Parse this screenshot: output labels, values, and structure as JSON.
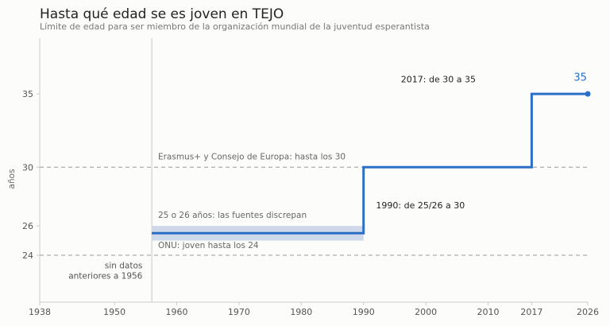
{
  "chart_data": {
    "type": "line",
    "title": "Hasta qué edad se es joven en TEJO",
    "subtitle": "Límite de edad para ser miembro de la organización mundial de la juventud esperantista",
    "ylabel": "años",
    "xlim": [
      1938,
      2026
    ],
    "ylim": [
      20.8,
      38.8
    ],
    "x_ticks": [
      1938,
      1950,
      1960,
      1970,
      1980,
      1990,
      2000,
      2010,
      2017,
      2026
    ],
    "y_ticks": [
      24,
      26,
      30,
      35
    ],
    "series": [
      {
        "step": true,
        "points": [
          {
            "x": 1956,
            "y": 25.5
          },
          {
            "x": 1990,
            "y": 25.5
          },
          {
            "x": 1990,
            "y": 30
          },
          {
            "x": 2017,
            "y": 30
          },
          {
            "x": 2017,
            "y": 35
          },
          {
            "x": 2026,
            "y": 35
          }
        ]
      }
    ],
    "band": {
      "x0": 1956,
      "x1": 1990,
      "y0": 25,
      "y1": 26
    },
    "no_data_until": 1956,
    "reference_lines": [
      {
        "y": 30,
        "label": "Erasmus+ y Consejo de Europa: hasta los 30"
      },
      {
        "y": 24,
        "label": "ONU: joven hasta los 24"
      }
    ],
    "annotations": {
      "band_label": "25 o 26 años: las fuentes discrepan",
      "change_1990": "1990: de 25/26 a 30",
      "change_2017": "2017: de 30 a 35",
      "no_data_line1": "sin datos",
      "no_data_line2": "anteriores a 1956",
      "end_value": "35"
    },
    "colors": {
      "line": "#2b6fc7",
      "band": "#cfd9ea",
      "reference": "#999999",
      "axis": "#cccccc",
      "text": "#555555"
    }
  }
}
